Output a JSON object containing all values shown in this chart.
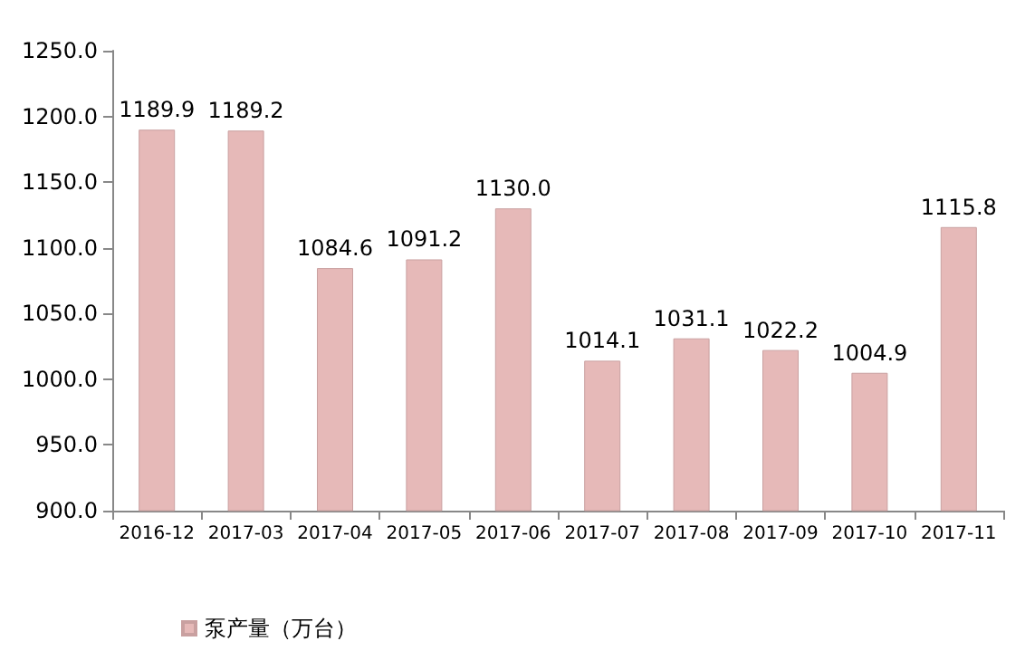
{
  "chart_data": {
    "type": "bar",
    "categories": [
      "2016-12",
      "2017-03",
      "2017-04",
      "2017-05",
      "2017-06",
      "2017-07",
      "2017-08",
      "2017-09",
      "2017-10",
      "2017-11"
    ],
    "series": [
      {
        "name": "泵产量（万台）",
        "color": "#e6b9b8",
        "values": [
          1189.9,
          1189.2,
          1084.6,
          1091.2,
          1130.0,
          1014.1,
          1031.1,
          1022.2,
          1004.9,
          1115.8
        ],
        "value_labels": [
          "1189.9",
          "1189.2",
          "1084.6",
          "1091.2",
          "1130.0",
          "1014.1",
          "1031.1",
          "1022.2",
          "1004.9",
          "1115.8"
        ]
      }
    ],
    "ylim": [
      900,
      1250
    ],
    "yticks": [
      {
        "value": 900,
        "label": "900.0"
      },
      {
        "value": 950,
        "label": "950.0"
      },
      {
        "value": 1000,
        "label": "1000.0"
      },
      {
        "value": 1050,
        "label": "1050.0"
      },
      {
        "value": 1100,
        "label": "1100.0"
      },
      {
        "value": 1150,
        "label": "1150.0"
      },
      {
        "value": 1200,
        "label": "1200.0"
      },
      {
        "value": 1250,
        "label": "1250.0"
      }
    ],
    "legend": "bottom left",
    "grid": false
  }
}
